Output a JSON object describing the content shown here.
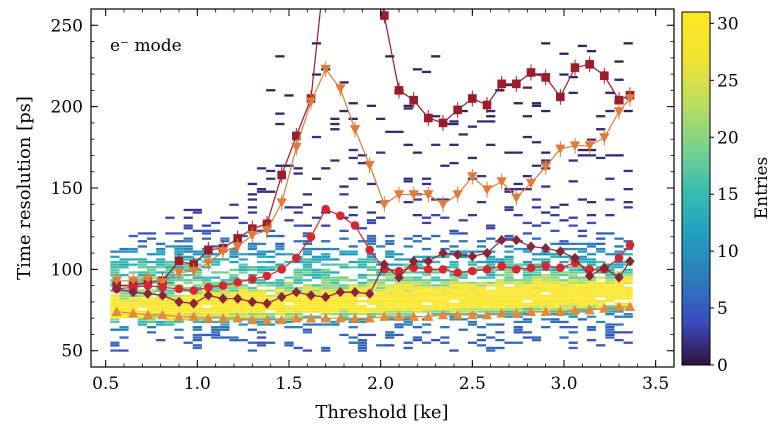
{
  "chart_data": {
    "type": "heatmap",
    "annotation": "e⁻ mode",
    "xlabel": "Threshold [ke]",
    "ylabel": "Time resolution [ps]",
    "xlim": [
      0.42,
      3.6
    ],
    "ylim": [
      40,
      260
    ],
    "xticks": [
      0.5,
      1.0,
      1.5,
      2.0,
      2.5,
      3.0,
      3.5
    ],
    "xtick_labels": [
      "0.5",
      "1.0",
      "1.5",
      "2.0",
      "2.5",
      "3.0",
      "3.5"
    ],
    "yticks": [
      50,
      100,
      150,
      200,
      250
    ],
    "ytick_labels": [
      "50",
      "100",
      "150",
      "200",
      "250"
    ],
    "grid": false,
    "colorbar": {
      "label": "Entries",
      "range": [
        0,
        31
      ],
      "ticks": [
        0,
        5,
        10,
        15,
        20,
        25,
        30
      ],
      "tick_labels": [
        "0",
        "5",
        "10",
        "15",
        "20",
        "25",
        "30"
      ],
      "colors": [
        "#30123b",
        "#3b4cc0",
        "#2c7fb8",
        "#21a0c0",
        "#3cbfae",
        "#7fd38a",
        "#c2de5c",
        "#f2e430",
        "#fde725"
      ]
    },
    "x": [
      0.55,
      0.6,
      0.65,
      0.7,
      0.75,
      0.8,
      0.85,
      0.9,
      0.95,
      1.0,
      1.05,
      1.1,
      1.15,
      1.2,
      1.25,
      1.3,
      1.35,
      1.4,
      1.45,
      1.5,
      1.55,
      1.6,
      1.65,
      1.7,
      1.75,
      1.8,
      1.85,
      1.9,
      1.95,
      2.0,
      2.05,
      2.1,
      2.15,
      2.2,
      2.25,
      2.3,
      2.35,
      2.4,
      2.45,
      2.5,
      2.55,
      2.6,
      2.65,
      2.7,
      2.75,
      2.8,
      2.85,
      2.9,
      2.95,
      3.0,
      3.05,
      3.1,
      3.15,
      3.2,
      3.25,
      3.3,
      3.35
    ],
    "series": [
      {
        "marker": "square",
        "color": "#9b1c2a",
        "errorbars": true,
        "x": [
          0.56,
          0.65,
          0.73,
          0.81,
          0.9,
          0.98,
          1.06,
          1.14,
          1.22,
          1.3,
          1.38,
          1.46,
          1.54,
          1.62,
          1.7,
          1.78,
          1.86,
          1.94,
          2.02,
          2.1,
          2.18,
          2.26,
          2.34,
          2.42,
          2.5,
          2.58,
          2.66,
          2.74,
          2.82,
          2.9,
          2.98,
          3.06,
          3.14,
          3.22,
          3.3,
          3.36
        ],
        "y": [
          90,
          90,
          92,
          93,
          105,
          103,
          112,
          113,
          119,
          125,
          128,
          158,
          182,
          205,
          290,
          300,
          295,
          300,
          256,
          210,
          204,
          193,
          190,
          198,
          205,
          201,
          214,
          214,
          221,
          218,
          206,
          224,
          226,
          219,
          204,
          207
        ]
      },
      {
        "marker": "triangle-down",
        "color": "#e07b3a",
        "errorbars": true,
        "x": [
          0.56,
          0.65,
          0.73,
          0.81,
          0.9,
          0.98,
          1.06,
          1.14,
          1.22,
          1.3,
          1.38,
          1.46,
          1.54,
          1.62,
          1.7,
          1.78,
          1.86,
          1.94,
          2.02,
          2.1,
          2.18,
          2.26,
          2.34,
          2.42,
          2.5,
          2.58,
          2.66,
          2.74,
          2.82,
          2.9,
          2.98,
          3.06,
          3.14,
          3.22,
          3.3,
          3.36
        ],
        "y": [
          93,
          93,
          94,
          92,
          98,
          99,
          104,
          111,
          114,
          121,
          124,
          141,
          175,
          203,
          223,
          211,
          186,
          164,
          140,
          146,
          146,
          146,
          140,
          146,
          157,
          149,
          154,
          144,
          153,
          163,
          174,
          176,
          176,
          181,
          197,
          205
        ]
      },
      {
        "marker": "circle",
        "color": "#d6262e",
        "errorbars": false,
        "x": [
          0.56,
          0.65,
          0.73,
          0.81,
          0.9,
          0.98,
          1.06,
          1.14,
          1.22,
          1.3,
          1.38,
          1.46,
          1.54,
          1.62,
          1.7,
          1.78,
          1.86,
          1.94,
          2.02,
          2.1,
          2.18,
          2.26,
          2.34,
          2.42,
          2.5,
          2.58,
          2.66,
          2.74,
          2.82,
          2.9,
          2.98,
          3.06,
          3.14,
          3.22,
          3.3,
          3.36
        ],
        "y": [
          88,
          89,
          90,
          89,
          88,
          87,
          89,
          90,
          92,
          94,
          96,
          100,
          107,
          120,
          137,
          133,
          127,
          112,
          100,
          99,
          101,
          100,
          100,
          98,
          99,
          100,
          102,
          100,
          101,
          102,
          101,
          104,
          100,
          100,
          107,
          115
        ]
      },
      {
        "marker": "diamond",
        "color": "#8b2436",
        "errorbars": false,
        "x": [
          0.56,
          0.65,
          0.73,
          0.81,
          0.9,
          0.98,
          1.06,
          1.14,
          1.22,
          1.3,
          1.38,
          1.46,
          1.54,
          1.62,
          1.7,
          1.78,
          1.86,
          1.94,
          2.02,
          2.1,
          2.18,
          2.26,
          2.34,
          2.42,
          2.5,
          2.58,
          2.66,
          2.74,
          2.82,
          2.9,
          2.98,
          3.06,
          3.14,
          3.22,
          3.3,
          3.36
        ],
        "y": [
          88,
          86,
          85,
          84,
          80,
          79,
          84,
          82,
          82,
          80,
          79,
          83,
          86,
          84,
          83,
          86,
          86,
          85,
          103,
          95,
          105,
          105,
          110,
          109,
          108,
          110,
          118,
          118,
          114,
          113,
          111,
          107,
          96,
          101,
          95,
          105
        ]
      },
      {
        "marker": "triangle-up",
        "color": "#e08a3a",
        "errorbars": false,
        "x": [
          0.56,
          0.65,
          0.73,
          0.81,
          0.9,
          0.98,
          1.06,
          1.14,
          1.22,
          1.3,
          1.38,
          1.46,
          1.54,
          1.62,
          1.7,
          1.78,
          1.86,
          1.94,
          2.02,
          2.1,
          2.18,
          2.26,
          2.34,
          2.42,
          2.5,
          2.58,
          2.66,
          2.74,
          2.82,
          2.9,
          2.98,
          3.06,
          3.14,
          3.22,
          3.3,
          3.36
        ],
        "y": [
          74,
          73,
          72,
          72,
          71,
          71,
          70,
          70,
          70,
          69,
          69,
          69,
          70,
          70,
          70,
          70,
          70,
          70,
          71,
          71,
          71,
          71,
          72,
          72,
          72,
          72,
          73,
          73,
          74,
          74,
          74,
          75,
          75,
          76,
          77,
          77
        ]
      }
    ]
  }
}
